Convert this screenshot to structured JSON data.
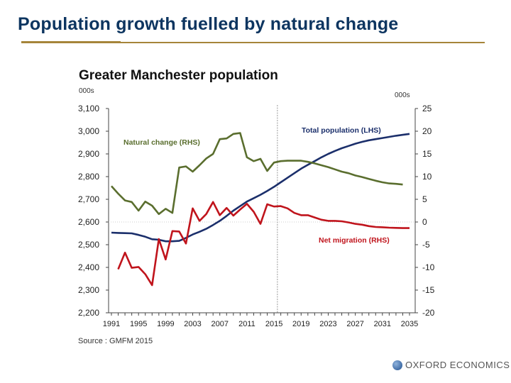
{
  "slide": {
    "title": "Population growth fuelled by natural change",
    "logo_text": "OXFORD ECONOMICS"
  },
  "chart_data": {
    "type": "line",
    "title": "Greater Manchester population",
    "left_unit": "000s",
    "right_unit": "000s",
    "source": "Source : GMFM 2015",
    "x_ticks": [
      1991,
      1995,
      1999,
      2003,
      2007,
      2011,
      2015,
      2019,
      2023,
      2027,
      2031,
      2035
    ],
    "xlim": [
      1991,
      2035
    ],
    "ylim_left": [
      2200,
      3100
    ],
    "ylim_right": [
      -20,
      25
    ],
    "left_ticks": [
      "2,200",
      "2,300",
      "2,400",
      "2,500",
      "2,600",
      "2,700",
      "2,800",
      "2,900",
      "3,000",
      "3,100"
    ],
    "right_ticks": [
      "-20",
      "-15",
      "-10",
      "-5",
      "0",
      "5",
      "10",
      "15",
      "20",
      "25"
    ],
    "forecast_divider_year": 2015.5,
    "zero_gridline_right": 0,
    "series": [
      {
        "name": "Total population (LHS)",
        "axis": "left",
        "color": "#1b2f6b",
        "start": 1991,
        "values": [
          2553,
          2552,
          2551,
          2550,
          2543,
          2535,
          2524,
          2522,
          2515,
          2515,
          2517,
          2530,
          2545,
          2557,
          2570,
          2587,
          2605,
          2627,
          2650,
          2670,
          2690,
          2705,
          2720,
          2737,
          2755,
          2775,
          2795,
          2815,
          2835,
          2852,
          2868,
          2885,
          2900,
          2913,
          2925,
          2935,
          2945,
          2953,
          2960,
          2965,
          2970,
          2975,
          2980,
          2984,
          2988
        ]
      },
      {
        "name": "Natural change (RHS)",
        "axis": "right",
        "color": "#5a6e2e",
        "start": 1991,
        "values": [
          7.9,
          6.25,
          4.75,
          4.4,
          2.5,
          4.5,
          3.6,
          1.75,
          2.9,
          2.0,
          12,
          12.25,
          11.1,
          12.5,
          14,
          15,
          18.25,
          18.4,
          19.4,
          19.6,
          14.25,
          13.4,
          13.9,
          11.25,
          13.1,
          13.4,
          13.5,
          13.5,
          13.5,
          13.25,
          12.9,
          12.5,
          12.1,
          11.6,
          11.1,
          10.75,
          10.25,
          9.9,
          9.5,
          9.1,
          8.75,
          8.5,
          8.4,
          8.25
        ]
      },
      {
        "name": "Net migration (RHS)",
        "axis": "right",
        "color": "#c0141c",
        "start": 1992,
        "values": [
          -10.4,
          -6.75,
          -10.1,
          -9.9,
          -11.5,
          -13.9,
          -3.75,
          -8.25,
          -2,
          -2.1,
          -4.75,
          3,
          0.25,
          1.75,
          4.4,
          1.5,
          3.1,
          1.4,
          2.75,
          4,
          2.25,
          -0.4,
          3.9,
          3.4,
          3.5,
          3.0,
          2.0,
          1.5,
          1.5,
          1.0,
          0.5,
          0.25,
          0.25,
          0.15,
          -0.1,
          -0.4,
          -0.6,
          -0.9,
          -1.1,
          -1.15,
          -1.25,
          -1.3,
          -1.35,
          -1.35
        ]
      }
    ]
  }
}
